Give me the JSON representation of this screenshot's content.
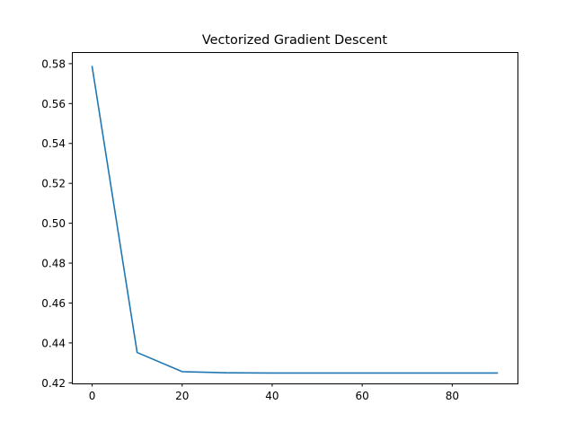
{
  "chart_data": {
    "type": "line",
    "title": "Vectorized Gradient Descent",
    "xlabel": "",
    "ylabel": "",
    "xlim": [
      -4.5,
      94.5
    ],
    "ylim": [
      0.4197,
      0.5858
    ],
    "xticks": [
      0,
      20,
      40,
      60,
      80
    ],
    "xtick_labels": [
      "0",
      "20",
      "40",
      "60",
      "80"
    ],
    "yticks": [
      0.42,
      0.44,
      0.46,
      0.48,
      0.5,
      0.52,
      0.54,
      0.56,
      0.58
    ],
    "ytick_labels": [
      "0.42",
      "0.44",
      "0.46",
      "0.48",
      "0.50",
      "0.52",
      "0.54",
      "0.56",
      "0.58"
    ],
    "grid": false,
    "legend": "none",
    "series": [
      {
        "color": "#1f77b4",
        "x": [
          0,
          10,
          20,
          30,
          40,
          50,
          60,
          70,
          80,
          90
        ],
        "y": [
          0.5785,
          0.4352,
          0.4256,
          0.425,
          0.4249,
          0.4249,
          0.4249,
          0.4249,
          0.4249,
          0.4249
        ]
      }
    ]
  }
}
